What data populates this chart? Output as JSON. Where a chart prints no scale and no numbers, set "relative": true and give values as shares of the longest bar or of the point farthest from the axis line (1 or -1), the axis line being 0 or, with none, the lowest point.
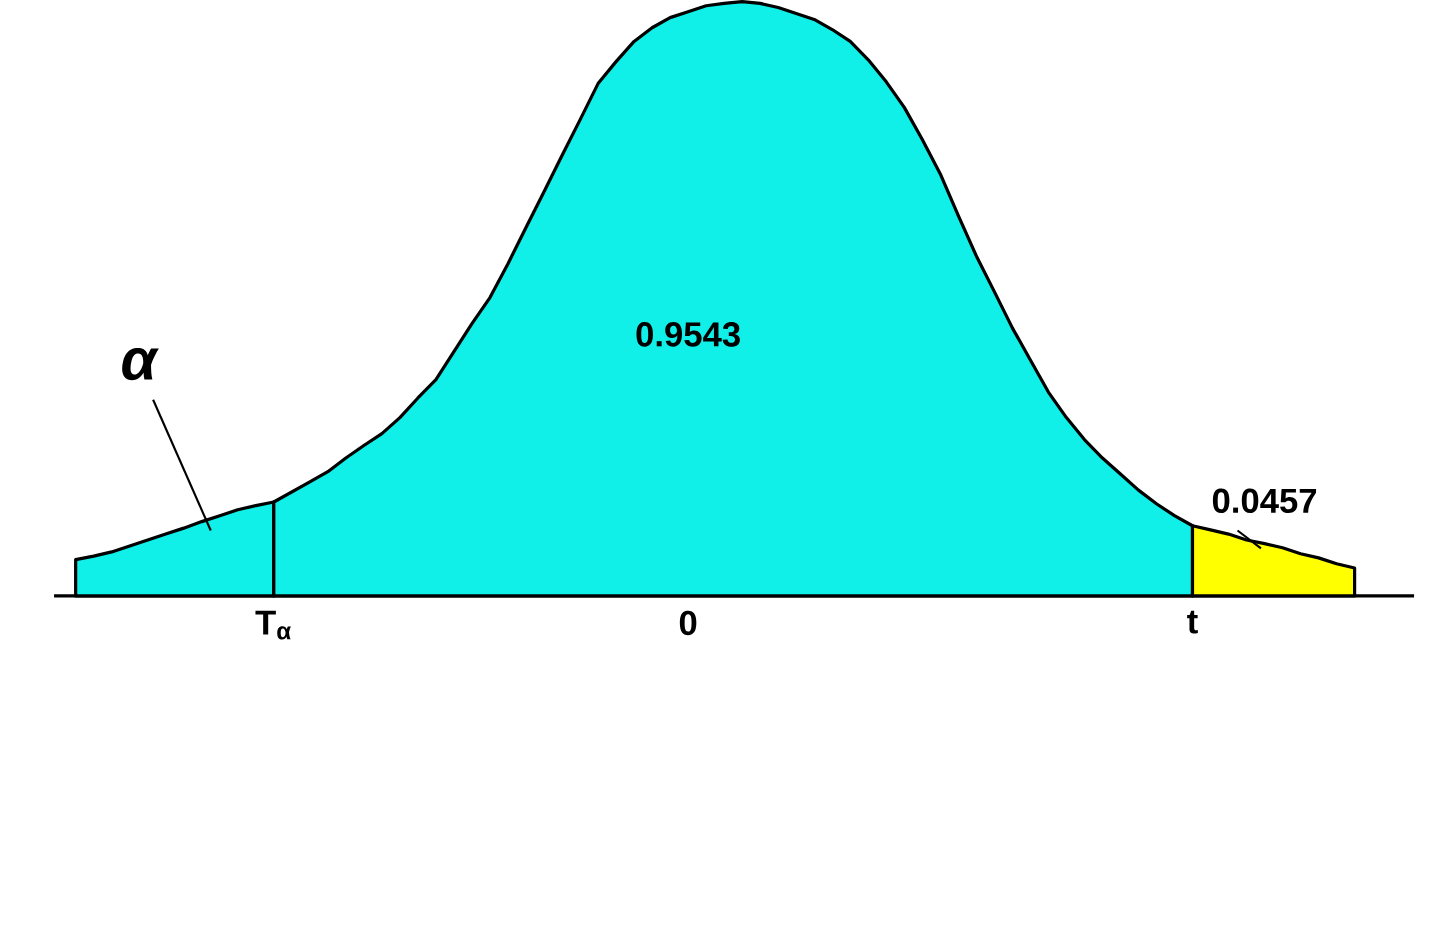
{
  "chart_data": {
    "type": "area",
    "relative": true,
    "categories": [
      null,
      null,
      null,
      null,
      null,
      null,
      null,
      null,
      null,
      null,
      null,
      "T$_{α}$",
      null,
      null,
      null,
      null,
      null,
      null,
      null,
      null,
      null,
      null,
      null,
      null,
      null,
      null,
      null,
      null,
      null,
      null,
      null,
      null,
      null,
      null,
      "0",
      null,
      null,
      null,
      null,
      null,
      null,
      null,
      null,
      null,
      null,
      null,
      null,
      null,
      null,
      null,
      null,
      null,
      null,
      null,
      null,
      null,
      null,
      null,
      null,
      null,
      null,
      null,
      "t",
      null,
      null,
      null,
      null,
      null,
      null,
      null,
      null,
      null
    ],
    "series": [
      {
        "color": "#11f0e8",
        "values": [
          0.061,
          0.067,
          0.074,
          0.084,
          0.094,
          0.104,
          0.114,
          0.125,
          0.135,
          0.145,
          0.152,
          0.158,
          null,
          null,
          null,
          null,
          null,
          null,
          null,
          null,
          null,
          null,
          null,
          null,
          null,
          null,
          null,
          null,
          null,
          null,
          null,
          null,
          null,
          null,
          null,
          null,
          null,
          null,
          null,
          null,
          null,
          null,
          null,
          null,
          null,
          null,
          null,
          null,
          null,
          null,
          null,
          null,
          null,
          null,
          null,
          null,
          null,
          null,
          null,
          null,
          null,
          null,
          null,
          null,
          null,
          null,
          null,
          null,
          null,
          null,
          null,
          null
        ]
      },
      {
        "color": "#11f0e8",
        "values": [
          null,
          null,
          null,
          null,
          null,
          null,
          null,
          null,
          null,
          null,
          null,
          0.158,
          0.175,
          0.192,
          0.209,
          0.232,
          0.253,
          0.273,
          0.3,
          0.333,
          0.364,
          0.411,
          0.458,
          0.502,
          0.559,
          0.62,
          0.68,
          0.741,
          0.801,
          0.862,
          0.899,
          0.933,
          0.956,
          0.973,
          0.983,
          0.993,
          0.997,
          1,
          0.997,
          0.99,
          0.98,
          0.97,
          0.953,
          0.933,
          0.902,
          0.865,
          0.822,
          0.768,
          0.71,
          0.64,
          0.572,
          0.512,
          0.451,
          0.397,
          0.343,
          0.3,
          0.263,
          0.232,
          0.205,
          0.178,
          0.155,
          0.135,
          0.118,
          null,
          null,
          null,
          null,
          null,
          null,
          null,
          null,
          null
        ]
      },
      {
        "color": "#ffff00",
        "values": [
          null,
          null,
          null,
          null,
          null,
          null,
          null,
          null,
          null,
          null,
          null,
          null,
          null,
          null,
          null,
          null,
          null,
          null,
          null,
          null,
          null,
          null,
          null,
          null,
          null,
          null,
          null,
          null,
          null,
          null,
          null,
          null,
          null,
          null,
          null,
          null,
          null,
          null,
          null,
          null,
          null,
          null,
          null,
          null,
          null,
          null,
          null,
          null,
          null,
          null,
          null,
          null,
          null,
          null,
          null,
          null,
          null,
          null,
          null,
          null,
          null,
          null,
          0.118,
          0.111,
          0.104,
          0.094,
          0.088,
          0.081,
          0.071,
          0.064,
          0.054,
          0.047
        ]
      }
    ],
    "annotations": [
      "α",
      "0.9543",
      "0.0457"
    ]
  }
}
